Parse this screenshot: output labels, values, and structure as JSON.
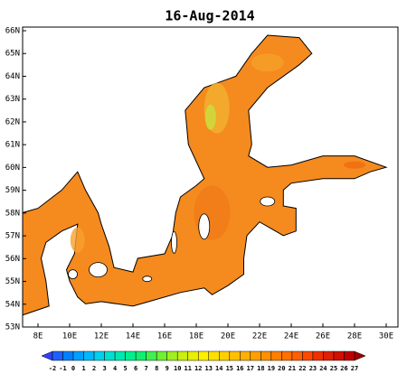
{
  "title": "16-Aug-2014",
  "lat_labels": [
    "66N",
    "65N",
    "64N",
    "63N",
    "62N",
    "61N",
    "60N",
    "59N",
    "58N",
    "57N",
    "56N",
    "55N",
    "54N",
    "53N"
  ],
  "lon_labels": [
    "8E",
    "10E",
    "12E",
    "14E",
    "16E",
    "18E",
    "20E",
    "22E",
    "24E",
    "26E",
    "28E",
    "30E"
  ],
  "colorbar": {
    "labels": [
      "-2",
      "-1",
      "0",
      "1",
      "2",
      "3",
      "4",
      "5",
      "6",
      "7",
      "8",
      "9",
      "10",
      "11",
      "12",
      "13",
      "14",
      "15",
      "16",
      "17",
      "18",
      "19",
      "20",
      "21",
      "22",
      "23",
      "24",
      "25",
      "26",
      "27"
    ],
    "colors": [
      "#3040ff",
      "#2060ff",
      "#0080ff",
      "#00a0ff",
      "#00b8ff",
      "#00d0f0",
      "#00e0d0",
      "#00e8b0",
      "#00f090",
      "#10f070",
      "#40f050",
      "#70f030",
      "#a0f020",
      "#c8f010",
      "#e8f000",
      "#fff000",
      "#ffe000",
      "#ffd000",
      "#ffc000",
      "#ffb000",
      "#ffa000",
      "#ff9000",
      "#ff8000",
      "#ff7000",
      "#ff6000",
      "#ff4800",
      "#f03000",
      "#e02000",
      "#d01000",
      "#c00000",
      "#a00000"
    ]
  }
}
